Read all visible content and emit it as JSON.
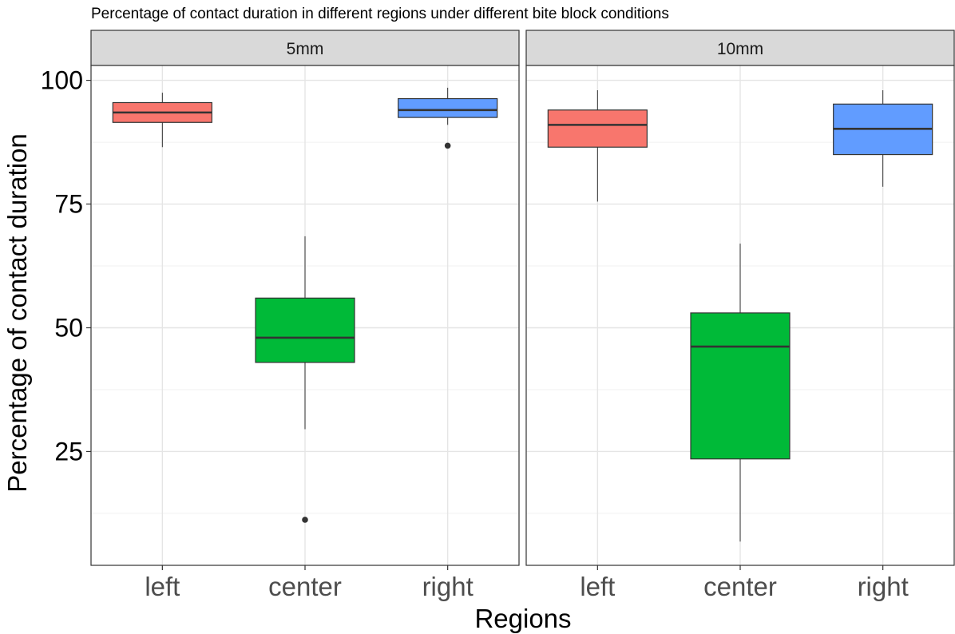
{
  "chart_data": {
    "type": "boxplot",
    "title": "Percentage of contact duration in different regions under different bite block conditions",
    "xlabel": "Regions",
    "ylabel": "Percentage of contact duration",
    "categories": [
      "left",
      "center",
      "right"
    ],
    "yticks": [
      25,
      50,
      75,
      100
    ],
    "ylim": [
      2,
      103
    ],
    "grid": true,
    "legend": "none",
    "colors": {
      "left": "#F8766D",
      "center": "#00BA38",
      "right": "#619CFF"
    },
    "panels": [
      {
        "label": "5mm",
        "boxes": [
          {
            "category": "left",
            "whisker_low": 86.5,
            "q1": 91.5,
            "median": 93.5,
            "q3": 95.5,
            "whisker_high": 97.5,
            "outliers": []
          },
          {
            "category": "center",
            "whisker_low": 29.5,
            "q1": 43.0,
            "median": 48.0,
            "q3": 56.0,
            "whisker_high": 68.5,
            "outliers": [
              11.2
            ]
          },
          {
            "category": "right",
            "whisker_low": 91.0,
            "q1": 92.5,
            "median": 94.0,
            "q3": 96.3,
            "whisker_high": 98.5,
            "outliers": [
              86.8
            ]
          }
        ]
      },
      {
        "label": "10mm",
        "boxes": [
          {
            "category": "left",
            "whisker_low": 75.5,
            "q1": 86.5,
            "median": 91.0,
            "q3": 94.0,
            "whisker_high": 98.0,
            "outliers": []
          },
          {
            "category": "center",
            "whisker_low": 6.8,
            "q1": 23.5,
            "median": 46.2,
            "q3": 53.0,
            "whisker_high": 67.0,
            "outliers": []
          },
          {
            "category": "right",
            "whisker_low": 78.5,
            "q1": 85.0,
            "median": 90.2,
            "q3": 95.2,
            "whisker_high": 98.0,
            "outliers": []
          }
        ]
      }
    ]
  }
}
